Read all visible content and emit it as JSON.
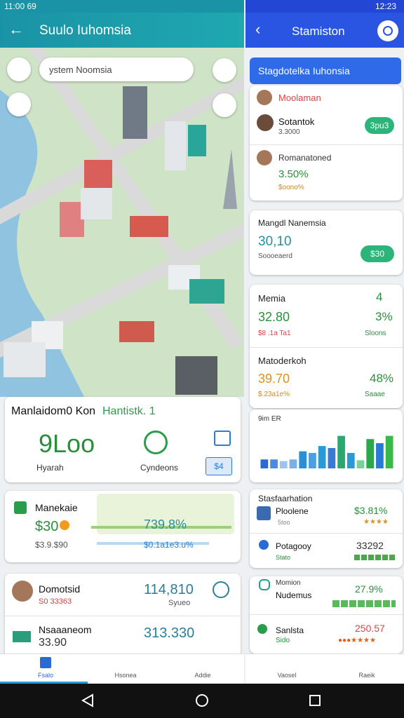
{
  "status_left": {
    "time": "11:00 69"
  },
  "status_right": {
    "time": "12:23"
  },
  "left_header": {
    "title": "Suulo Iuhomsia"
  },
  "right_header": {
    "title": "Stamiston"
  },
  "map": {
    "search": "ystem Noomsia"
  },
  "summary_card": {
    "title": "Manlaidom0 Kon",
    "title_accent": "Hantistk. 1",
    "big_value": "9Loo",
    "label_left": "Hyarah",
    "label_right": "Cyndeons",
    "button": "$4"
  },
  "stat_card": {
    "title": "Manekaie",
    "value": "$30",
    "sub": "$3.9.$90",
    "percent": "739.8%",
    "sub_percent": "$0.1a1e3.u%"
  },
  "people": [
    {
      "name": "Domotsid",
      "sub": "S0 33363",
      "value": "114,810",
      "value_sub": "Syueo"
    },
    {
      "name": "Nsaaaneom",
      "sub": "33.90",
      "value": "313.330"
    }
  ],
  "banner": "Stagdotelka Iuhonsia",
  "contacts": [
    {
      "name": "Moolaman"
    },
    {
      "name": "Sotantok",
      "sub": "3.3000",
      "button": "3pu3"
    },
    {
      "name": "Romanatoned",
      "value": "3.50%",
      "sub": "$oono%"
    }
  ],
  "region_card": {
    "title": "Mangdl Nanemsia",
    "value": "30,10",
    "sub": "Soooeaerd",
    "button": "$30"
  },
  "metrics": [
    {
      "name": "Memia",
      "count": "4",
      "value": "32.80",
      "percent": "3%",
      "sub": "$8 .1a Ta1",
      "sub_right": "Sloons"
    },
    {
      "name": "Matoderkoh",
      "value": "39.70",
      "percent": "48%",
      "sub": "$.23a1e%",
      "sub_right": "Saaae"
    }
  ],
  "chart": {
    "title": "9im ER",
    "ylim": [
      0,
      100
    ],
    "values": [
      22,
      22,
      18,
      22,
      42,
      38,
      55,
      50,
      80,
      38,
      20,
      72,
      62,
      80
    ],
    "colors": [
      "#2a6ad4",
      "#4a8ae0",
      "#9cc4ee",
      "#7ab0e6",
      "#2a8fd4",
      "#4aa0e0",
      "#2a9ad4",
      "#3a7ad4",
      "#2aa870",
      "#2a9ad4",
      "#7ad09a",
      "#2aa84a",
      "#2a7ad4",
      "#3ab84a"
    ]
  },
  "products": {
    "title": "Stasfaarhation",
    "items": [
      {
        "name": "Ploolene",
        "sub": "5too",
        "value": "$3.81%"
      },
      {
        "name": "Potagooy",
        "sub": "Stato",
        "value": "33292"
      }
    ]
  },
  "teams": [
    {
      "name": "Momion",
      "sub": "Nudemus",
      "value": "27.9%"
    },
    {
      "name": "Sanlsta",
      "sub": "Sido",
      "value": "250.57"
    }
  ],
  "nav": [
    "Fsalo",
    "Hsonea",
    "Addie",
    "Vaosel",
    "Raeik"
  ]
}
